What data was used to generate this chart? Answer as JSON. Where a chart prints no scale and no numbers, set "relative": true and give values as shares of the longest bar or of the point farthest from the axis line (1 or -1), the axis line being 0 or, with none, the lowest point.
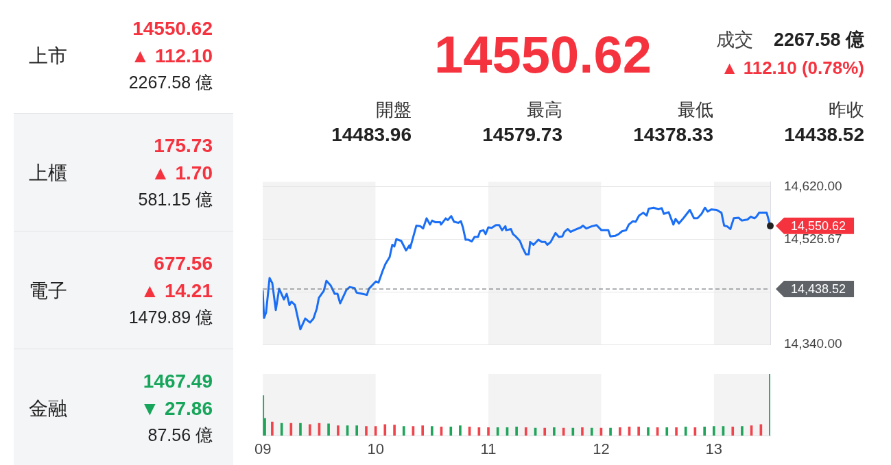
{
  "chart_data": [
    {
      "type": "other",
      "annotations": [
        "上市",
        "14550.62",
        "▲ 112.10",
        "2267.58 億",
        "上櫃",
        "175.73",
        "▲ 1.70",
        "581.15 億",
        "電子",
        "677.56",
        "▲ 14.21",
        "1479.89 億",
        "金融",
        "1467.49",
        "▼ 27.86",
        "87.56 億",
        "14550.62",
        "成交",
        "2267.58 億",
        "▲ 112.10 (0.78%)",
        "開盤",
        "14483.96",
        "最高",
        "14579.73",
        "最低",
        "14378.33",
        "昨收",
        "14438.52"
      ],
      "colors": [
        "#222222",
        "#f5333f",
        "#f5333f",
        "#222222",
        "#222222",
        "#f5333f",
        "#f5333f",
        "#222222",
        "#222222",
        "#f5333f",
        "#f5333f",
        "#222222",
        "#222222",
        "#16a55a",
        "#16a55a",
        "#222222",
        "#f5333f",
        "#444444",
        "#222222",
        "#f5333f",
        "#333333",
        "#222222",
        "#333333",
        "#222222",
        "#333333",
        "#222222",
        "#333333",
        "#222222"
      ]
    },
    {
      "type": "line",
      "x": [
        9.0,
        9.012,
        9.03,
        9.061,
        9.085,
        9.116,
        9.146,
        9.188,
        9.213,
        9.237,
        9.255,
        9.286,
        9.334,
        9.377,
        9.419,
        9.45,
        9.48,
        9.498,
        9.541,
        9.565,
        9.602,
        9.638,
        9.663,
        9.687,
        9.742,
        9.772,
        9.815,
        9.833,
        9.881,
        9.924,
        9.942,
        10.003,
        10.027,
        10.064,
        10.088,
        10.125,
        10.149,
        10.167,
        10.185,
        10.228,
        10.271,
        10.301,
        10.307,
        10.362,
        10.398,
        10.422,
        10.453,
        10.483,
        10.502,
        10.532,
        10.574,
        10.581,
        10.623,
        10.641,
        10.672,
        10.696,
        10.733,
        10.757,
        10.775,
        10.799,
        10.824,
        10.854,
        10.878,
        10.909,
        10.927,
        10.957,
        10.976,
        11.0,
        11.03,
        11.067,
        11.097,
        11.122,
        11.152,
        11.158,
        11.201,
        11.219,
        11.243,
        11.28,
        11.304,
        11.334,
        11.359,
        11.371,
        11.401,
        11.444,
        11.474,
        11.505,
        11.523,
        11.553,
        11.596,
        11.626,
        11.657,
        11.675,
        11.705,
        11.729,
        11.76,
        11.821,
        11.839,
        11.869,
        11.918,
        11.96,
        12.003,
        12.064,
        12.082,
        12.125,
        12.155,
        12.185,
        12.222,
        12.246,
        12.283,
        12.307,
        12.337,
        12.374,
        12.404,
        12.422,
        12.465,
        12.508,
        12.538,
        12.556,
        12.599,
        12.641,
        12.66,
        12.69,
        12.733,
        12.787,
        12.824,
        12.854,
        12.891,
        12.921,
        12.945,
        12.976,
        13.024,
        13.067,
        13.091,
        13.116,
        13.146,
        13.176,
        13.219,
        13.249,
        13.298,
        13.328,
        13.359,
        13.377,
        13.401,
        13.468,
        13.5
      ],
      "series": [
        {
          "color": "#1a6ef5",
          "values": [
            14435,
            14387,
            14397,
            14458,
            14449,
            14401,
            14439,
            14420,
            14430,
            14410,
            14416,
            14410,
            14367,
            14386,
            14379,
            14386,
            14404,
            14423,
            14435,
            14453,
            14445,
            14430,
            14430,
            14413,
            14437,
            14442,
            14440,
            14432,
            14430,
            14428,
            14439,
            14452,
            14450,
            14471,
            14483,
            14495,
            14517,
            14514,
            14527,
            14524,
            14507,
            14516,
            14511,
            14551,
            14550,
            14546,
            14564,
            14553,
            14560,
            14557,
            14557,
            14553,
            14564,
            14561,
            14568,
            14558,
            14556,
            14559,
            14548,
            14526,
            14526,
            14523,
            14531,
            14531,
            14541,
            14543,
            14536,
            14548,
            14547,
            14552,
            14552,
            14543,
            14550,
            14543,
            14545,
            14536,
            14532,
            14524,
            14512,
            14500,
            14500,
            14522,
            14517,
            14526,
            14522,
            14522,
            14517,
            14522,
            14538,
            14531,
            14532,
            14540,
            14545,
            14540,
            14543,
            14548,
            14551,
            14546,
            14550,
            14552,
            14543,
            14543,
            14532,
            14533,
            14536,
            14541,
            14543,
            14553,
            14559,
            14558,
            14569,
            14574,
            14569,
            14581,
            14583,
            14580,
            14582,
            14572,
            14575,
            14553,
            14563,
            14555,
            14565,
            14579,
            14564,
            14564,
            14572,
            14583,
            14576,
            14580,
            14579,
            14574,
            14551,
            14550,
            14545,
            14564,
            14565,
            14560,
            14562,
            14567,
            14564,
            14567,
            14574,
            14574,
            14551
          ]
        }
      ],
      "xlim": [
        9,
        13.5
      ],
      "ylim": [
        14340,
        14629
      ],
      "yticks": [
        {
          "value": 14340,
          "label": "14,340.00"
        },
        {
          "value": 14433.33,
          "label": null
        },
        {
          "value": 14526.67,
          "label": "14,526.67"
        },
        {
          "value": 14620,
          "label": "14,620.00"
        }
      ],
      "tick_labels": "y",
      "grid": "y",
      "marker": "none",
      "line_style": "solid",
      "legend": false,
      "ref_lines": [
        {
          "axis": "y",
          "value": 14438.52,
          "label": "14,438.52",
          "color": "#5f6368",
          "line_style": "dashed"
        }
      ],
      "bands": [
        {
          "axis": "x",
          "from": 9,
          "to": 10,
          "color": "#f3f3f3"
        },
        {
          "axis": "x",
          "from": 11,
          "to": 12,
          "color": "#f3f3f3"
        },
        {
          "axis": "x",
          "from": 13,
          "to": 13.5,
          "color": "#f3f3f3"
        }
      ],
      "annotations": [
        {
          "text": "14,550.62",
          "x": 13.5,
          "y": 14550.62
        }
      ]
    },
    {
      "type": "bar",
      "relative": true,
      "x": [
        9.0,
        9.017,
        9.083,
        9.167,
        9.25,
        9.333,
        9.417,
        9.5,
        9.583,
        9.667,
        9.75,
        9.833,
        9.917,
        10.0,
        10.083,
        10.167,
        10.25,
        10.333,
        10.417,
        10.5,
        10.583,
        10.667,
        10.75,
        10.833,
        10.917,
        11.0,
        11.083,
        11.167,
        11.25,
        11.333,
        11.417,
        11.5,
        11.583,
        11.667,
        11.75,
        11.833,
        11.917,
        12.0,
        12.083,
        12.167,
        12.25,
        12.333,
        12.417,
        12.5,
        12.583,
        12.667,
        12.75,
        12.833,
        12.917,
        13.0,
        13.083,
        13.167,
        13.25,
        13.333,
        13.417,
        13.5
      ],
      "values": [
        0.65,
        0.28,
        0.22,
        0.2,
        0.2,
        0.2,
        0.18,
        0.2,
        0.19,
        0.16,
        0.16,
        0.16,
        0.15,
        0.15,
        0.18,
        0.17,
        0.15,
        0.15,
        0.16,
        0.15,
        0.14,
        0.14,
        0.16,
        0.14,
        0.13,
        0.13,
        0.13,
        0.13,
        0.14,
        0.13,
        0.12,
        0.12,
        0.13,
        0.12,
        0.12,
        0.13,
        0.12,
        0.12,
        0.12,
        0.13,
        0.14,
        0.14,
        0.13,
        0.13,
        0.13,
        0.13,
        0.14,
        0.13,
        0.14,
        0.15,
        0.15,
        0.14,
        0.15,
        0.16,
        0.18,
        1.0
      ],
      "colors": [
        "#1fa45a",
        "#1fa45a",
        "#f0444c",
        "#1fa45a",
        "#f0444c",
        "#1fa45a",
        "#f0444c",
        "#f0444c",
        "#1fa45a",
        "#f0444c",
        "#1fa45a",
        "#1fa45a",
        "#f0444c",
        "#f0444c",
        "#f0444c",
        "#f0444c",
        "#1fa45a",
        "#f0444c",
        "#f0444c",
        "#1fa45a",
        "#f0444c",
        "#1fa45a",
        "#1fa45a",
        "#f0444c",
        "#f0444c",
        "#f0444c",
        "#1fa45a",
        "#1fa45a",
        "#1fa45a",
        "#f0444c",
        "#1fa45a",
        "#f0444c",
        "#1fa45a",
        "#f0444c",
        "#1fa45a",
        "#f0444c",
        "#1fa45a",
        "#f0444c",
        "#1fa45a",
        "#f0444c",
        "#f0444c",
        "#f0444c",
        "#1fa45a",
        "#f0444c",
        "#1fa45a",
        "#f0444c",
        "#1fa45a",
        "#f0444c",
        "#1fa45a",
        "#1fa45a",
        "#1fa45a",
        "#f0444c",
        "#1fa45a",
        "#f0444c",
        "#f0444c",
        "#1fa45a"
      ],
      "xlim": [
        9,
        13.5
      ],
      "xticks": [
        {
          "value": 9,
          "label": "09"
        },
        10,
        11,
        12,
        13
      ],
      "tick_labels": "x",
      "grid": false,
      "bands": [
        {
          "axis": "x",
          "from": 9,
          "to": 10,
          "color": "#f3f3f3"
        },
        {
          "axis": "x",
          "from": 11,
          "to": 12,
          "color": "#f3f3f3"
        },
        {
          "axis": "x",
          "from": 13,
          "to": 13.5,
          "color": "#f3f3f3"
        }
      ]
    }
  ]
}
